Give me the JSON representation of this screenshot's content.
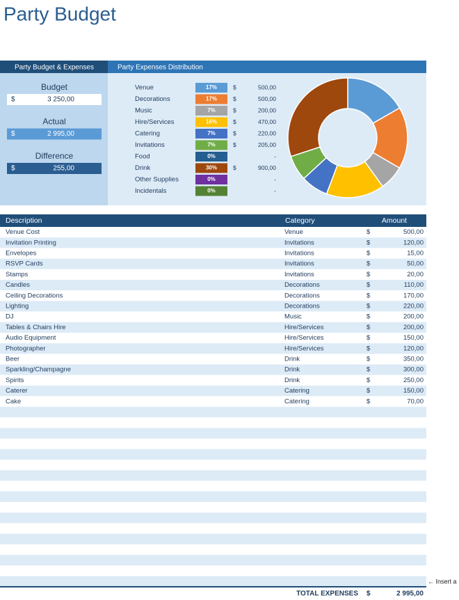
{
  "header": {
    "title": "Party Budget"
  },
  "tabs": [
    "Party Budget & Expenses",
    "Party Expenses Distribution"
  ],
  "currency": "$",
  "summary": [
    {
      "label": "Budget",
      "value": "3 250,00"
    },
    {
      "label": "Actual",
      "value": "2 995,00"
    },
    {
      "label": "Difference",
      "value": "255,00"
    }
  ],
  "chart_data": {
    "type": "pie",
    "categories": [
      "Venue",
      "Decorations",
      "Music",
      "Hire/Services",
      "Catering",
      "Invitations",
      "Food",
      "Drink",
      "Other Supplies",
      "Incidentals"
    ],
    "values": [
      500,
      500,
      200,
      470,
      220,
      205,
      0,
      900,
      0,
      0
    ],
    "value_labels": [
      "500,00",
      "500,00",
      "200,00",
      "470,00",
      "220,00",
      "205,00",
      "-",
      "900,00",
      "-",
      "-"
    ],
    "percent_labels": [
      "17%",
      "17%",
      "7%",
      "16%",
      "7%",
      "7%",
      "0%",
      "30%",
      "0%",
      "0%"
    ],
    "colors": [
      "#5b9bd5",
      "#ed7d31",
      "#a5a5a5",
      "#ffc000",
      "#4472c4",
      "#70ad47",
      "#255e91",
      "#9e480e",
      "#7030a0",
      "#548235"
    ]
  },
  "table": {
    "columns": [
      "Description",
      "Category",
      "Amount"
    ],
    "rows": [
      [
        "Venue Cost",
        "Venue",
        "500,00"
      ],
      [
        "Invitation Printing",
        "Invitations",
        "120,00"
      ],
      [
        "Envelopes",
        "Invitations",
        "15,00"
      ],
      [
        "RSVP Cards",
        "Invitations",
        "50,00"
      ],
      [
        "Stamps",
        "Invitations",
        "20,00"
      ],
      [
        "Candles",
        "Decorations",
        "110,00"
      ],
      [
        "Ceiling Decorations",
        "Decorations",
        "170,00"
      ],
      [
        "Lighting",
        "Decorations",
        "220,00"
      ],
      [
        "DJ",
        "Music",
        "200,00"
      ],
      [
        "Tables & Chairs Hire",
        "Hire/Services",
        "200,00"
      ],
      [
        "Audio Equipment",
        "Hire/Services",
        "150,00"
      ],
      [
        "Photographer",
        "Hire/Services",
        "120,00"
      ],
      [
        "Beer",
        "Drink",
        "350,00"
      ],
      [
        "Sparkling/Champagne",
        "Drink",
        "300,00"
      ],
      [
        "Spirits",
        "Drink",
        "250,00"
      ],
      [
        "Caterer",
        "Catering",
        "150,00"
      ],
      [
        "Cake",
        "Catering",
        "70,00"
      ]
    ],
    "total_label": "TOTAL EXPENSES",
    "total": "2 995,00"
  },
  "insert_note": "← Insert a"
}
